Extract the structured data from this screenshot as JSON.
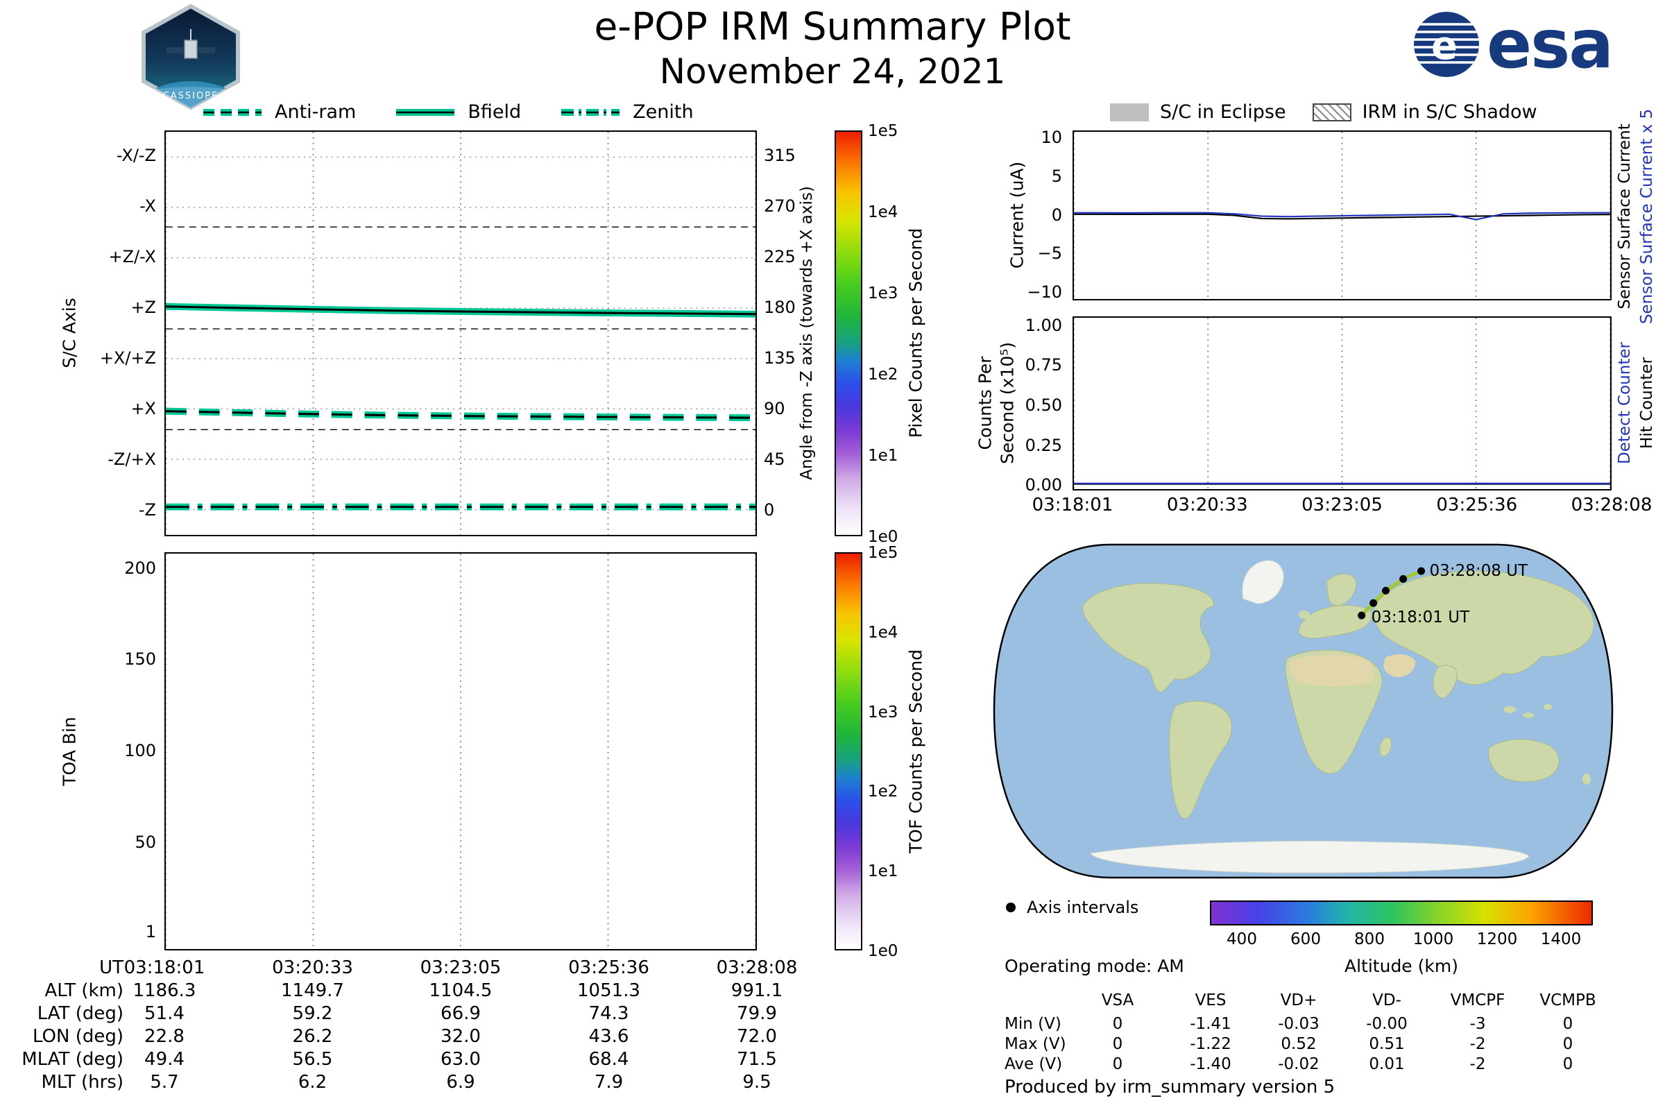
{
  "header": {
    "title": "e-POP IRM Summary Plot",
    "date": "November 24, 2021",
    "patch_text": "CASSIOPE",
    "esa_logo_text": "esa"
  },
  "left_legend": {
    "items": [
      {
        "label": "Anti-ram",
        "style": "dashed"
      },
      {
        "label": "Bfield",
        "style": "solid"
      },
      {
        "label": "Zenith",
        "style": "dashdot"
      }
    ],
    "line_color": "#00c795"
  },
  "right_legend": {
    "items": [
      {
        "label": "S/C in Eclipse",
        "swatch": "filled-gray"
      },
      {
        "label": "IRM in S/C Shadow",
        "swatch": "hatched"
      }
    ]
  },
  "colors": {
    "accent_teal": "#00c795",
    "series_blue": "#2233bb",
    "eclipse_gray": "#bfbfbf",
    "ocean": "#9bbfe0",
    "land": "#ccd8a7"
  },
  "chart_data": [
    {
      "id": "sc-axis",
      "type": "line",
      "ylabel": "S/C Axis",
      "ylabel_right": "Angle from -Z axis (towards +X axis)",
      "ylim": [
        -22.5,
        337.5
      ],
      "y_ticks": [
        {
          "v": 315,
          "left": "-X/-Z",
          "right": "315"
        },
        {
          "v": 270,
          "left": "-X",
          "right": "270"
        },
        {
          "v": 225,
          "left": "+Z/-X",
          "right": "225"
        },
        {
          "v": 180,
          "left": "+Z",
          "right": "180"
        },
        {
          "v": 135,
          "left": "+X/+Z",
          "right": "135"
        },
        {
          "v": 90,
          "left": "+X",
          "right": "90"
        },
        {
          "v": 45,
          "left": "-Z/+X",
          "right": "45"
        },
        {
          "v": 0,
          "left": "-Z",
          "right": "0"
        }
      ],
      "dashed_y": [
        252.5,
        161.5,
        71.5
      ],
      "x_tick_labels": [
        "03:18:01",
        "03:20:33",
        "03:23:05",
        "03:25:36",
        "03:28:08"
      ],
      "colorbar": {
        "label": "Pixel Counts per Second",
        "tick_labels": [
          "1e5",
          "1e4",
          "1e3",
          "1e2",
          "1e1",
          "1e0"
        ]
      },
      "series": [
        {
          "name": "Anti-ram",
          "style": "dashed",
          "x": [
            0,
            0.125,
            0.25,
            0.375,
            0.5,
            0.625,
            0.75,
            0.875,
            1
          ],
          "values": [
            88,
            86.6,
            85.4,
            84.4,
            83.7,
            83.2,
            82.8,
            82.4,
            82.1
          ]
        },
        {
          "name": "Bfield",
          "style": "solid",
          "x": [
            0,
            0.125,
            0.25,
            0.375,
            0.5,
            0.625,
            0.75,
            0.875,
            1
          ],
          "values": [
            181.5,
            180.2,
            179,
            177.9,
            177,
            176.3,
            175.7,
            175.2,
            174.7
          ]
        },
        {
          "name": "Zenith",
          "style": "dashdot",
          "x": [
            0,
            0.25,
            0.5,
            0.75,
            1
          ],
          "values": [
            2.5,
            2.5,
            2.5,
            2.5,
            2.5
          ]
        }
      ]
    },
    {
      "id": "toa-bin",
      "type": "line",
      "ylabel": "TOA Bin",
      "ylim": [
        -9,
        209
      ],
      "y_ticks": [
        {
          "v": 200,
          "label": "200"
        },
        {
          "v": 150,
          "label": "150"
        },
        {
          "v": 100,
          "label": "100"
        },
        {
          "v": 50,
          "label": "50"
        },
        {
          "v": 1,
          "label": "1"
        }
      ],
      "x_tick_labels": [
        "03:18:01",
        "03:20:33",
        "03:23:05",
        "03:25:36",
        "03:28:08"
      ],
      "colorbar": {
        "label": "TOF Counts per Second",
        "tick_labels": [
          "1e5",
          "1e4",
          "1e3",
          "1e2",
          "1e1",
          "1e0"
        ]
      },
      "series": []
    },
    {
      "id": "current",
      "type": "line",
      "ylabel": "Current (uA)",
      "right_labels": [
        {
          "text": "Sensor Surface Current",
          "color": "#000000"
        },
        {
          "text": "Sensor Surface Current x 5",
          "color": "#2233bb"
        }
      ],
      "ylim": [
        -11,
        11
      ],
      "y_ticks": [
        {
          "v": 10,
          "label": "10"
        },
        {
          "v": 5,
          "label": "5"
        },
        {
          "v": 0,
          "label": "0"
        },
        {
          "v": -5,
          "label": "−5"
        },
        {
          "v": -10,
          "label": "−10"
        }
      ],
      "x_tick_labels": [
        "03:18:01",
        "03:20:33",
        "03:23:05",
        "03:25:36",
        "03:28:08"
      ],
      "series": [
        {
          "name": "Sensor Surface Current",
          "color": "#000000",
          "x": [
            0,
            0.05,
            0.1,
            0.15,
            0.2,
            0.25,
            0.3,
            0.35,
            0.4,
            0.45,
            0.5,
            0.55,
            0.6,
            0.65,
            0.7,
            0.75,
            0.8,
            0.85,
            0.9,
            0.95,
            1
          ],
          "values": [
            0.15,
            0.15,
            0.14,
            0.15,
            0.15,
            0.15,
            0.0,
            -0.4,
            -0.45,
            -0.4,
            -0.35,
            -0.3,
            -0.25,
            -0.2,
            -0.15,
            -0.1,
            -0.05,
            0.0,
            0.05,
            0.1,
            0.12
          ]
        },
        {
          "name": "Sensor Surface Current x 5",
          "color": "#2233bb",
          "x": [
            0,
            0.05,
            0.1,
            0.15,
            0.2,
            0.25,
            0.3,
            0.35,
            0.4,
            0.45,
            0.5,
            0.55,
            0.6,
            0.65,
            0.7,
            0.75,
            0.8,
            0.85,
            0.9,
            0.95,
            1
          ],
          "values": [
            0.35,
            0.35,
            0.33,
            0.35,
            0.34,
            0.35,
            0.2,
            -0.1,
            -0.15,
            -0.1,
            -0.05,
            0.0,
            0.05,
            0.1,
            0.15,
            -0.55,
            0.2,
            0.3,
            0.32,
            0.35,
            0.35
          ]
        }
      ]
    },
    {
      "id": "hit-counter",
      "type": "line",
      "ylabel_line1": "Counts Per",
      "ylabel_line2": "Second (x10⁵)",
      "right_labels": [
        {
          "text": "Detect Counter",
          "color": "#2233bb"
        },
        {
          "text": "Hit Counter",
          "color": "#000000"
        }
      ],
      "ylim": [
        -0.03,
        1.06
      ],
      "y_ticks": [
        {
          "v": 1.0,
          "label": "1.00"
        },
        {
          "v": 0.75,
          "label": "0.75"
        },
        {
          "v": 0.5,
          "label": "0.50"
        },
        {
          "v": 0.25,
          "label": "0.25"
        },
        {
          "v": 0.0,
          "label": "0.00"
        }
      ],
      "x_tick_labels": [
        "03:18:01",
        "03:20:33",
        "03:23:05",
        "03:25:36",
        "03:28:08"
      ],
      "series": [
        {
          "name": "Hit Counter",
          "color": "#000000",
          "x": [
            0,
            1
          ],
          "values": [
            0.002,
            0.002
          ]
        },
        {
          "name": "Detect Counter",
          "color": "#2233bb",
          "x": [
            0,
            1
          ],
          "values": [
            0.006,
            0.006
          ]
        }
      ]
    }
  ],
  "ephemeris": {
    "rows": [
      {
        "label": "UT",
        "values": [
          "03:18:01",
          "03:20:33",
          "03:23:05",
          "03:25:36",
          "03:28:08"
        ]
      },
      {
        "label": "ALT (km)",
        "values": [
          "1186.3",
          "1149.7",
          "1104.5",
          "1051.3",
          "991.1"
        ]
      },
      {
        "label": "LAT (deg)",
        "values": [
          "51.4",
          "59.2",
          "66.9",
          "74.3",
          "79.9"
        ]
      },
      {
        "label": "LON (deg)",
        "values": [
          "22.8",
          "26.2",
          "32.0",
          "43.6",
          "72.0"
        ]
      },
      {
        "label": "MLAT (deg)",
        "values": [
          "49.4",
          "56.5",
          "63.0",
          "68.4",
          "71.5"
        ]
      },
      {
        "label": "MLT (hrs)",
        "values": [
          "5.7",
          "6.2",
          "6.9",
          "7.9",
          "9.5"
        ]
      }
    ]
  },
  "map": {
    "axis_intervals_label": "Axis intervals",
    "start_label": "03:18:01 UT",
    "end_label": "03:28:08 UT",
    "track_color": "#a4c832",
    "track": [
      {
        "time": "03:18:01",
        "fx": 0.594,
        "fy": 0.222,
        "alt_km": 1186.3
      },
      {
        "time": "03:20:33",
        "fx": 0.613,
        "fy": 0.186,
        "alt_km": 1149.7
      },
      {
        "time": "03:23:05",
        "fx": 0.633,
        "fy": 0.15,
        "alt_km": 1104.5
      },
      {
        "time": "03:25:36",
        "fx": 0.661,
        "fy": 0.116,
        "alt_km": 1051.3
      },
      {
        "time": "03:28:08",
        "fx": 0.69,
        "fy": 0.093,
        "alt_km": 991.1
      }
    ],
    "colorbar": {
      "label": "Altitude (km)",
      "ticks": [
        400,
        600,
        800,
        1000,
        1200,
        1400
      ],
      "range": [
        300,
        1500
      ]
    }
  },
  "status": {
    "operating_mode": "Operating mode: AM",
    "produced_by": "Produced by irm_summary version 5"
  },
  "voltage_table": {
    "columns": [
      "VSA",
      "VES",
      "VD+",
      "VD-",
      "VMCPF",
      "VCMPB"
    ],
    "rows": [
      {
        "label": "Min (V)",
        "values": [
          "0",
          "-1.41",
          "-0.03",
          "-0.00",
          "-3",
          "0"
        ]
      },
      {
        "label": "Max (V)",
        "values": [
          "0",
          "-1.22",
          "0.52",
          "0.51",
          "-2",
          "0"
        ]
      },
      {
        "label": "Ave (V)",
        "values": [
          "0",
          "-1.40",
          "-0.02",
          "0.01",
          "-2",
          "0"
        ]
      }
    ]
  }
}
